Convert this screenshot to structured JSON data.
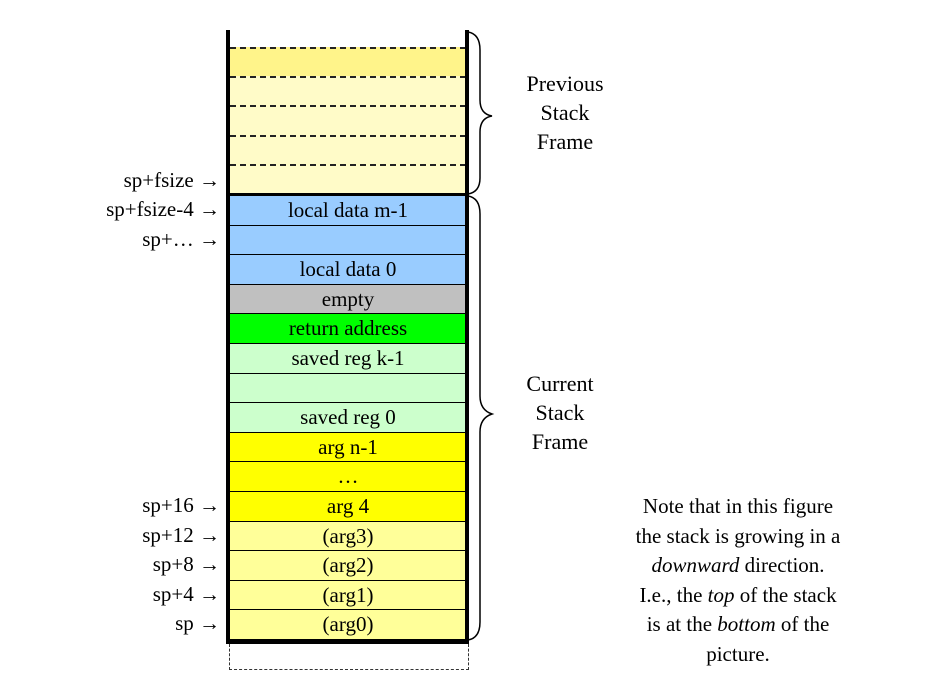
{
  "previous_frame": {
    "label_lines": [
      "Previous",
      "Stack",
      "Frame"
    ],
    "slots": 5,
    "color": "#fffbc8"
  },
  "current_frame": {
    "label_lines": [
      "Current",
      "Stack",
      "Frame"
    ]
  },
  "rows": [
    {
      "text": "local data m-1",
      "color": "#99ccff"
    },
    {
      "text": "",
      "color": "#99ccff"
    },
    {
      "text": "local data 0",
      "color": "#99ccff"
    },
    {
      "text": "empty",
      "color": "#c0c0c0"
    },
    {
      "text": "return address",
      "color": "#00ff00"
    },
    {
      "text": "saved reg k-1",
      "color": "#ccffcc"
    },
    {
      "text": "",
      "color": "#ccffcc"
    },
    {
      "text": "saved reg 0",
      "color": "#ccffcc"
    },
    {
      "text": "arg n-1",
      "color": "#ffff00"
    },
    {
      "text": "…",
      "color": "#ffff00"
    },
    {
      "text": "arg 4",
      "color": "#ffff00"
    },
    {
      "text": "(arg3)",
      "color": "#ffff99"
    },
    {
      "text": "(arg2)",
      "color": "#ffff99"
    },
    {
      "text": "(arg1)",
      "color": "#ffff99"
    },
    {
      "text": "(arg0)",
      "color": "#ffff99"
    }
  ],
  "pointers": [
    {
      "text": "sp+fsize →",
      "row": -1
    },
    {
      "text": "sp+fsize-4 →",
      "row": 0
    },
    {
      "text": "sp+… →",
      "row": 1
    },
    {
      "text": "sp+16 →",
      "row": 10
    },
    {
      "text": "sp+12 →",
      "row": 11
    },
    {
      "text": "sp+8 →",
      "row": 12
    },
    {
      "text": "sp+4 →",
      "row": 13
    },
    {
      "text": "sp →",
      "row": 14
    }
  ],
  "note": {
    "line1": "Note that in this figure",
    "line2": "the stack is growing in a",
    "line3_em": "downward",
    "line3": " direction.",
    "line4a": "I.e., the ",
    "line4_em": "top",
    "line4b": " of the stack",
    "line5a": "is at the ",
    "line5_em": "bottom",
    "line5b": " of the",
    "line6": "picture."
  }
}
